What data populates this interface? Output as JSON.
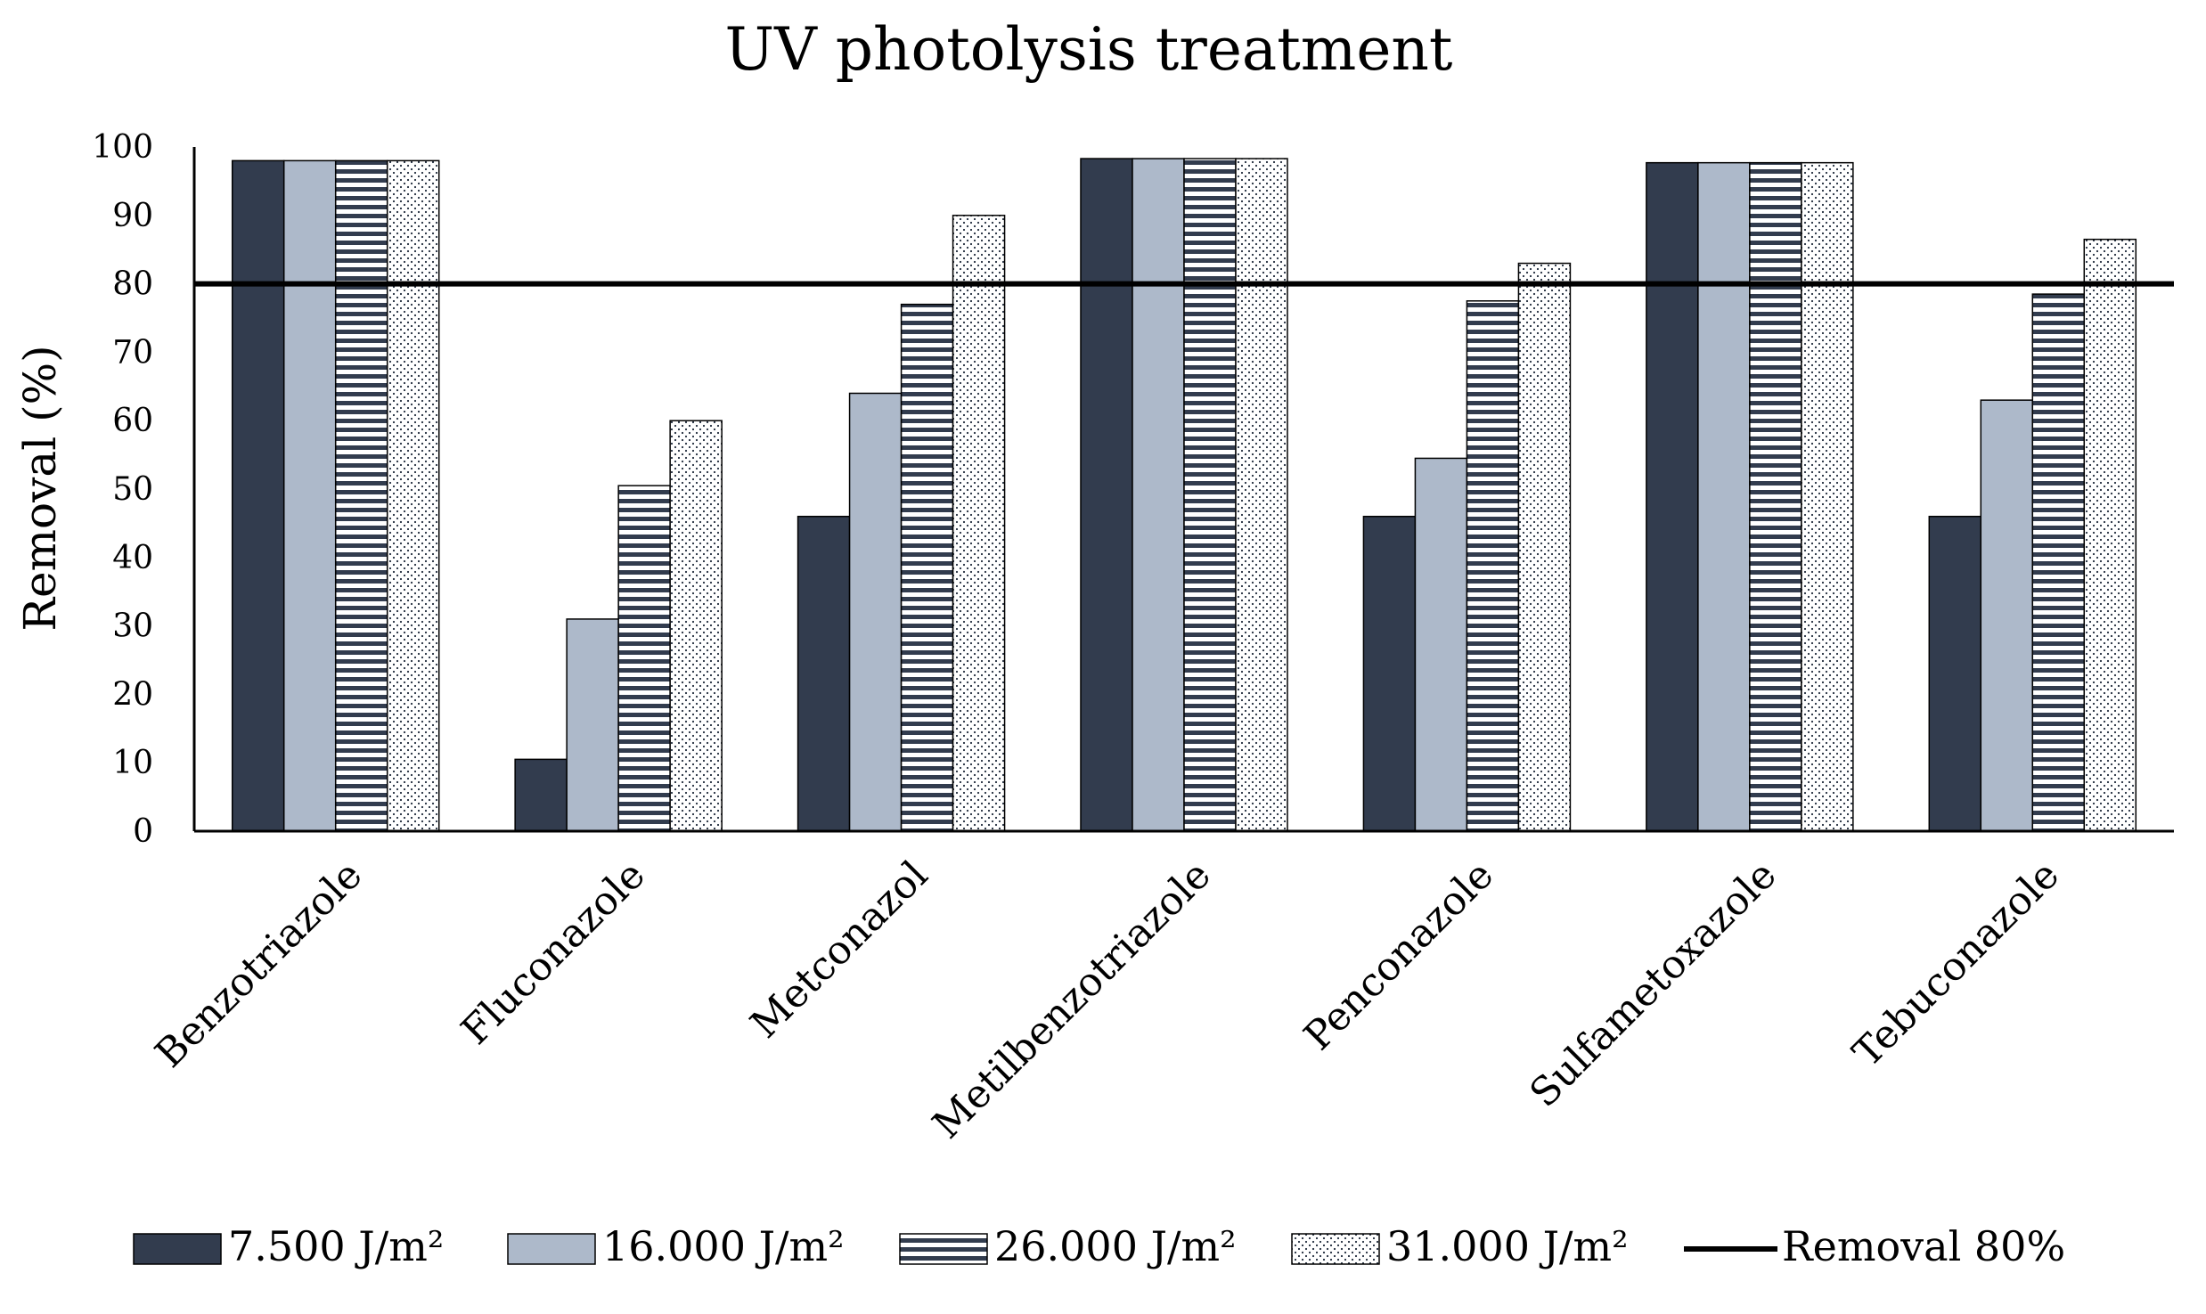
{
  "chart_data": {
    "type": "bar",
    "title": "UV photolysis treatment",
    "xlabel": "",
    "ylabel": "Removal (%)",
    "ylim": [
      0,
      100
    ],
    "yticks": [
      "0",
      "10",
      "20",
      "30",
      "40",
      "50",
      "60",
      "70",
      "80",
      "90",
      "100"
    ],
    "categories": [
      "Benzotriazole",
      "Fluconazole",
      "Metconazol",
      "Metilbenzotriazole",
      "Penconazole",
      "Sulfametoxazole",
      "Tebuconazole"
    ],
    "series": [
      {
        "name": "7.500 J/m²",
        "values": [
          98,
          10.5,
          46,
          98.3,
          46,
          97.7,
          46
        ],
        "color": "#323c4e",
        "pattern": "solid"
      },
      {
        "name": "16.000 J/m²",
        "values": [
          98,
          31,
          64,
          98.3,
          54.5,
          97.7,
          63
        ],
        "color": "#adb9ca",
        "pattern": "solid"
      },
      {
        "name": "26.000 J/m²",
        "values": [
          98,
          50.5,
          77,
          98.3,
          77.5,
          97.7,
          78.5
        ],
        "color": "#323c4e",
        "pattern": "horizontal-stripes"
      },
      {
        "name": "31.000 J/m²",
        "values": [
          98,
          60,
          90,
          98.3,
          83,
          97.7,
          86.5
        ],
        "color": "#1f2a3b",
        "pattern": "dots"
      }
    ],
    "reference_line": {
      "name": "Removal 80%",
      "value": 80,
      "color": "#000000"
    },
    "legend_position": "bottom"
  }
}
